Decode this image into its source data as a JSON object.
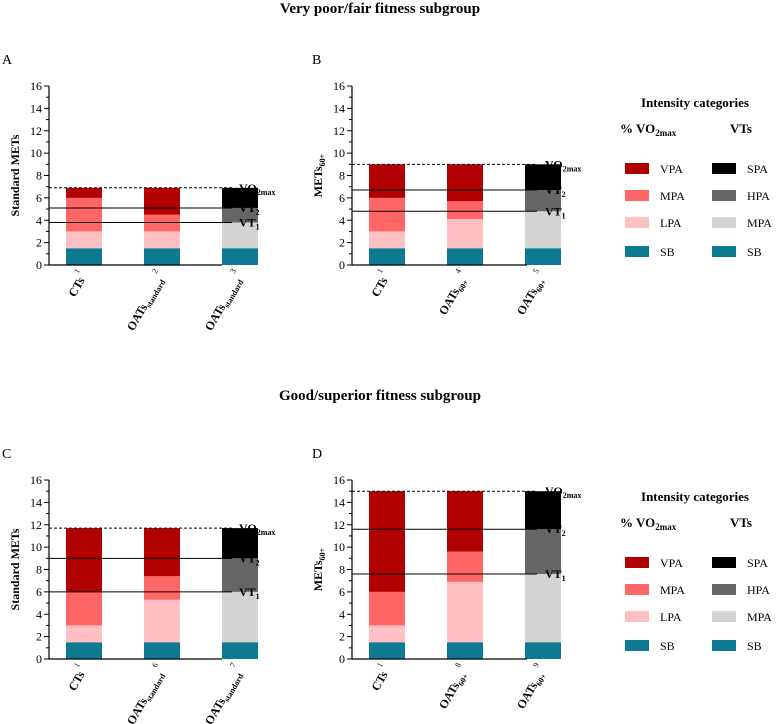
{
  "section_titles": [
    "Very poor/fair fitness subgroup",
    "Good/superior fitness subgroup"
  ],
  "colors": {
    "SB": "#0e7a92",
    "LPA": "#ffc0c4",
    "MPA": "#ff6666",
    "VPA": "#b00000",
    "MPA_vt": "#d3d3d3",
    "HPA": "#666666",
    "SPA": "#000000"
  },
  "legends": [
    {
      "title": "Intensity categories",
      "col1_header_main": "% VO",
      "col1_header_sub": "2max",
      "col2_header": "VTs",
      "col1_items": [
        {
          "label": "VPA",
          "color": "#b00000"
        },
        {
          "label": "MPA",
          "color": "#ff6666"
        },
        {
          "label": "LPA",
          "color": "#ffc0c4"
        },
        {
          "label": "SB",
          "color": "#0e7a92"
        }
      ],
      "col2_items": [
        {
          "label": "SPA",
          "color": "#000000"
        },
        {
          "label": "HPA",
          "color": "#666666"
        },
        {
          "label": "MPA",
          "color": "#d3d3d3"
        },
        {
          "label": "SB",
          "color": "#0e7a92"
        }
      ]
    },
    {
      "title": "Intensity categories",
      "col1_header_main": "% VO",
      "col1_header_sub": "2max",
      "col2_header": "VTs",
      "col1_items": [
        {
          "label": "VPA",
          "color": "#b00000"
        },
        {
          "label": "MPA",
          "color": "#ff6666"
        },
        {
          "label": "LPA",
          "color": "#ffc0c4"
        },
        {
          "label": "SB",
          "color": "#0e7a92"
        }
      ],
      "col2_items": [
        {
          "label": "SPA",
          "color": "#000000"
        },
        {
          "label": "HPA",
          "color": "#666666"
        },
        {
          "label": "MPA",
          "color": "#d3d3d3"
        },
        {
          "label": "SB",
          "color": "#0e7a92"
        }
      ]
    }
  ],
  "chart_data": [
    {
      "type": "bar",
      "stacked": true,
      "panel": "A",
      "ylabel": "Standard METs",
      "ylabel_sub": "",
      "ylim": [
        0,
        16
      ],
      "yticks": [
        0,
        2,
        4,
        6,
        8,
        10,
        12,
        14,
        16
      ],
      "bars": [
        {
          "label": "CTs",
          "label_sub": "",
          "sup": "1",
          "segments": [
            {
              "name": "SB",
              "value": 1.5,
              "color": "#0e7a92"
            },
            {
              "name": "LPA",
              "value": 1.5,
              "color": "#ffc0c4"
            },
            {
              "name": "MPA",
              "value": 3.0,
              "color": "#ff6666"
            },
            {
              "name": "VPA",
              "value": 0.9,
              "color": "#b00000"
            }
          ]
        },
        {
          "label": "OATs",
          "label_sub": "standard",
          "sup": "2",
          "segments": [
            {
              "name": "SB",
              "value": 1.5,
              "color": "#0e7a92"
            },
            {
              "name": "LPA",
              "value": 1.5,
              "color": "#ffc0c4"
            },
            {
              "name": "MPA",
              "value": 1.5,
              "color": "#ff6666"
            },
            {
              "name": "VPA",
              "value": 2.4,
              "color": "#b00000"
            }
          ]
        },
        {
          "label": "OATs",
          "label_sub": "standard",
          "sup": "3",
          "segments": [
            {
              "name": "SB",
              "value": 1.5,
              "color": "#0e7a92"
            },
            {
              "name": "MPA",
              "value": 2.3,
              "color": "#d3d3d3"
            },
            {
              "name": "HPA",
              "value": 1.3,
              "color": "#666666"
            },
            {
              "name": "SPA",
              "value": 1.8,
              "color": "#000000"
            }
          ]
        }
      ],
      "reference_lines": [
        {
          "name": "VO",
          "sub": "2max",
          "value": 6.9,
          "style": "dashed"
        },
        {
          "name": "VT",
          "sub": "2",
          "value": 5.1,
          "style": "solid"
        },
        {
          "name": "VT",
          "sub": "1",
          "value": 3.8,
          "style": "solid"
        }
      ]
    },
    {
      "type": "bar",
      "stacked": true,
      "panel": "B",
      "ylabel": "METs",
      "ylabel_sub": "60+",
      "ylim": [
        0,
        16
      ],
      "yticks": [
        0,
        2,
        4,
        6,
        8,
        10,
        12,
        14,
        16
      ],
      "bars": [
        {
          "label": "CTs",
          "label_sub": "",
          "sup": "1",
          "segments": [
            {
              "name": "SB",
              "value": 1.5,
              "color": "#0e7a92"
            },
            {
              "name": "LPA",
              "value": 1.5,
              "color": "#ffc0c4"
            },
            {
              "name": "MPA",
              "value": 3.0,
              "color": "#ff6666"
            },
            {
              "name": "VPA",
              "value": 3.0,
              "color": "#b00000"
            }
          ]
        },
        {
          "label": "OATs",
          "label_sub": "60+",
          "sup": "4",
          "segments": [
            {
              "name": "SB",
              "value": 1.5,
              "color": "#0e7a92"
            },
            {
              "name": "LPA",
              "value": 2.6,
              "color": "#ffc0c4"
            },
            {
              "name": "MPA",
              "value": 1.6,
              "color": "#ff6666"
            },
            {
              "name": "VPA",
              "value": 3.3,
              "color": "#b00000"
            }
          ]
        },
        {
          "label": "OATs",
          "label_sub": "60+",
          "sup": "5",
          "segments": [
            {
              "name": "SB",
              "value": 1.5,
              "color": "#0e7a92"
            },
            {
              "name": "MPA",
              "value": 3.3,
              "color": "#d3d3d3"
            },
            {
              "name": "HPA",
              "value": 1.9,
              "color": "#666666"
            },
            {
              "name": "SPA",
              "value": 2.3,
              "color": "#000000"
            }
          ]
        }
      ],
      "reference_lines": [
        {
          "name": "VO",
          "sub": "2max",
          "value": 9.0,
          "style": "dashed"
        },
        {
          "name": "VT",
          "sub": "2",
          "value": 6.7,
          "style": "solid"
        },
        {
          "name": "VT",
          "sub": "1",
          "value": 4.8,
          "style": "solid"
        }
      ]
    },
    {
      "type": "bar",
      "stacked": true,
      "panel": "C",
      "ylabel": "Standard METs",
      "ylabel_sub": "",
      "ylim": [
        0,
        16
      ],
      "yticks": [
        0,
        2,
        4,
        6,
        8,
        10,
        12,
        14,
        16
      ],
      "bars": [
        {
          "label": "CTs",
          "label_sub": "",
          "sup": "1",
          "segments": [
            {
              "name": "SB",
              "value": 1.5,
              "color": "#0e7a92"
            },
            {
              "name": "LPA",
              "value": 1.5,
              "color": "#ffc0c4"
            },
            {
              "name": "MPA",
              "value": 3.0,
              "color": "#ff6666"
            },
            {
              "name": "VPA",
              "value": 5.7,
              "color": "#b00000"
            }
          ]
        },
        {
          "label": "OATs",
          "label_sub": "standard",
          "sup": "6",
          "segments": [
            {
              "name": "SB",
              "value": 1.5,
              "color": "#0e7a92"
            },
            {
              "name": "LPA",
              "value": 3.8,
              "color": "#ffc0c4"
            },
            {
              "name": "MPA",
              "value": 2.1,
              "color": "#ff6666"
            },
            {
              "name": "VPA",
              "value": 4.3,
              "color": "#b00000"
            }
          ]
        },
        {
          "label": "OATs",
          "label_sub": "standard",
          "sup": "7",
          "segments": [
            {
              "name": "SB",
              "value": 1.5,
              "color": "#0e7a92"
            },
            {
              "name": "MPA",
              "value": 4.5,
              "color": "#d3d3d3"
            },
            {
              "name": "HPA",
              "value": 3.0,
              "color": "#666666"
            },
            {
              "name": "SPA",
              "value": 2.7,
              "color": "#000000"
            }
          ]
        }
      ],
      "reference_lines": [
        {
          "name": "VO",
          "sub": "2max",
          "value": 11.7,
          "style": "dashed"
        },
        {
          "name": "VT",
          "sub": "2",
          "value": 9.0,
          "style": "solid"
        },
        {
          "name": "VT",
          "sub": "1",
          "value": 6.0,
          "style": "solid"
        }
      ]
    },
    {
      "type": "bar",
      "stacked": true,
      "panel": "D",
      "ylabel": "METs",
      "ylabel_sub": "60+",
      "ylim": [
        0,
        16
      ],
      "yticks": [
        0,
        2,
        4,
        6,
        8,
        10,
        12,
        14,
        16
      ],
      "bars": [
        {
          "label": "CTs",
          "label_sub": "",
          "sup": "1",
          "segments": [
            {
              "name": "SB",
              "value": 1.5,
              "color": "#0e7a92"
            },
            {
              "name": "LPA",
              "value": 1.5,
              "color": "#ffc0c4"
            },
            {
              "name": "MPA",
              "value": 3.0,
              "color": "#ff6666"
            },
            {
              "name": "VPA",
              "value": 9.0,
              "color": "#b00000"
            }
          ]
        },
        {
          "label": "OATs",
          "label_sub": "60+",
          "sup": "8",
          "segments": [
            {
              "name": "SB",
              "value": 1.5,
              "color": "#0e7a92"
            },
            {
              "name": "LPA",
              "value": 5.4,
              "color": "#ffc0c4"
            },
            {
              "name": "MPA",
              "value": 2.7,
              "color": "#ff6666"
            },
            {
              "name": "VPA",
              "value": 5.4,
              "color": "#b00000"
            }
          ]
        },
        {
          "label": "OATs",
          "label_sub": "60+",
          "sup": "9",
          "segments": [
            {
              "name": "SB",
              "value": 1.5,
              "color": "#0e7a92"
            },
            {
              "name": "MPA",
              "value": 6.1,
              "color": "#d3d3d3"
            },
            {
              "name": "HPA",
              "value": 4.0,
              "color": "#666666"
            },
            {
              "name": "SPA",
              "value": 3.4,
              "color": "#000000"
            }
          ]
        }
      ],
      "reference_lines": [
        {
          "name": "VO",
          "sub": "2max",
          "value": 15.0,
          "style": "dashed"
        },
        {
          "name": "VT",
          "sub": "2",
          "value": 11.6,
          "style": "solid"
        },
        {
          "name": "VT",
          "sub": "1",
          "value": 7.6,
          "style": "solid"
        }
      ]
    }
  ]
}
